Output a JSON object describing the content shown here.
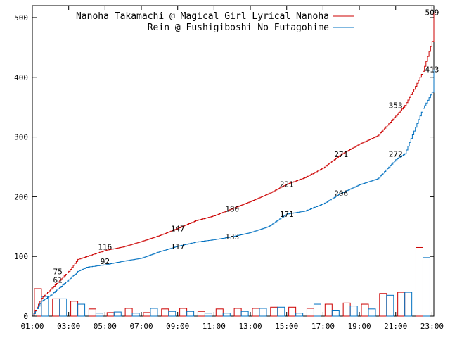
{
  "chart_data": {
    "type": "line",
    "xlim": [
      1.0,
      23.1
    ],
    "ylim": [
      0,
      520
    ],
    "x_ticks": [
      {
        "value": 1,
        "label": "01:00"
      },
      {
        "value": 3,
        "label": "03:00"
      },
      {
        "value": 5,
        "label": "05:00"
      },
      {
        "value": 7,
        "label": "07:00"
      },
      {
        "value": 9,
        "label": "09:00"
      },
      {
        "value": 11,
        "label": "11:00"
      },
      {
        "value": 13,
        "label": "13:00"
      },
      {
        "value": 15,
        "label": "15:00"
      },
      {
        "value": 17,
        "label": "17:00"
      },
      {
        "value": 19,
        "label": "19:00"
      },
      {
        "value": 21,
        "label": "21:00"
      },
      {
        "value": 23,
        "label": "23:00"
      }
    ],
    "y_ticks": [
      {
        "value": 0,
        "label": "0"
      },
      {
        "value": 100,
        "label": "100"
      },
      {
        "value": 200,
        "label": "200"
      },
      {
        "value": 300,
        "label": "300"
      },
      {
        "value": 400,
        "label": "400"
      },
      {
        "value": 500,
        "label": "500"
      }
    ],
    "grid": false,
    "legend_position": "top-right",
    "series": [
      {
        "name": "Nanoha Takamachi @ Magical Girl Lyrical Nanoha",
        "color": "#cc0000",
        "cumulative": [
          [
            1.0,
            0
          ],
          [
            1.5,
            30
          ],
          [
            2.0,
            45
          ],
          [
            2.5,
            60
          ],
          [
            3.0,
            75
          ],
          [
            3.5,
            95
          ],
          [
            4.0,
            100
          ],
          [
            5.0,
            110
          ],
          [
            6.0,
            116
          ],
          [
            7.0,
            125
          ],
          [
            8.0,
            135
          ],
          [
            9.0,
            147
          ],
          [
            10.0,
            160
          ],
          [
            11.0,
            168
          ],
          [
            12.0,
            180
          ],
          [
            13.0,
            192
          ],
          [
            14.0,
            205
          ],
          [
            15.0,
            221
          ],
          [
            16.0,
            232
          ],
          [
            17.0,
            248
          ],
          [
            18.0,
            271
          ],
          [
            19.0,
            288
          ],
          [
            20.0,
            302
          ],
          [
            21.0,
            335
          ],
          [
            21.5,
            353
          ],
          [
            22.0,
            380
          ],
          [
            22.5,
            410
          ],
          [
            23.0,
            460
          ],
          [
            23.1,
            509
          ]
        ],
        "hourly": [
          46,
          29,
          25,
          12,
          6,
          13,
          6,
          12,
          13,
          8,
          12,
          13,
          13,
          15,
          15,
          13,
          20,
          22,
          20,
          38,
          40,
          115
        ],
        "point_labels": [
          {
            "x": 2.4,
            "value": "75"
          },
          {
            "x": 5.0,
            "value": "116"
          },
          {
            "x": 9.0,
            "value": "147"
          },
          {
            "x": 12.0,
            "value": "180"
          },
          {
            "x": 15.0,
            "value": "221"
          },
          {
            "x": 18.0,
            "value": "271"
          },
          {
            "x": 21.0,
            "value": "353"
          },
          {
            "x": 23.0,
            "value": "509"
          }
        ]
      },
      {
        "name": "Rein @ Fushigiboshi No Futagohime",
        "color": "#0070c0",
        "cumulative": [
          [
            1.0,
            0
          ],
          [
            1.5,
            25
          ],
          [
            2.0,
            35
          ],
          [
            2.5,
            48
          ],
          [
            3.0,
            61
          ],
          [
            3.5,
            75
          ],
          [
            4.0,
            82
          ],
          [
            5.0,
            86
          ],
          [
            6.0,
            92
          ],
          [
            7.0,
            97
          ],
          [
            8.0,
            108
          ],
          [
            9.0,
            117
          ],
          [
            10.0,
            124
          ],
          [
            11.0,
            128
          ],
          [
            12.0,
            133
          ],
          [
            13.0,
            140
          ],
          [
            14.0,
            150
          ],
          [
            15.0,
            171
          ],
          [
            16.0,
            176
          ],
          [
            17.0,
            188
          ],
          [
            18.0,
            206
          ],
          [
            19.0,
            220
          ],
          [
            20.0,
            230
          ],
          [
            21.0,
            262
          ],
          [
            21.5,
            272
          ],
          [
            22.0,
            310
          ],
          [
            22.5,
            348
          ],
          [
            23.0,
            375
          ],
          [
            23.1,
            413
          ]
        ],
        "hourly": [
          33,
          29,
          20,
          5,
          7,
          5,
          13,
          8,
          8,
          5,
          5,
          8,
          13,
          15,
          5,
          20,
          10,
          17,
          12,
          35,
          40,
          98
        ],
        "point_labels": [
          {
            "x": 2.4,
            "value": "61"
          },
          {
            "x": 5.0,
            "value": "92"
          },
          {
            "x": 9.0,
            "value": "117"
          },
          {
            "x": 12.0,
            "value": "133"
          },
          {
            "x": 15.0,
            "value": "171"
          },
          {
            "x": 18.0,
            "value": "206"
          },
          {
            "x": 21.0,
            "value": "272"
          },
          {
            "x": 23.0,
            "value": "413"
          }
        ]
      }
    ]
  }
}
